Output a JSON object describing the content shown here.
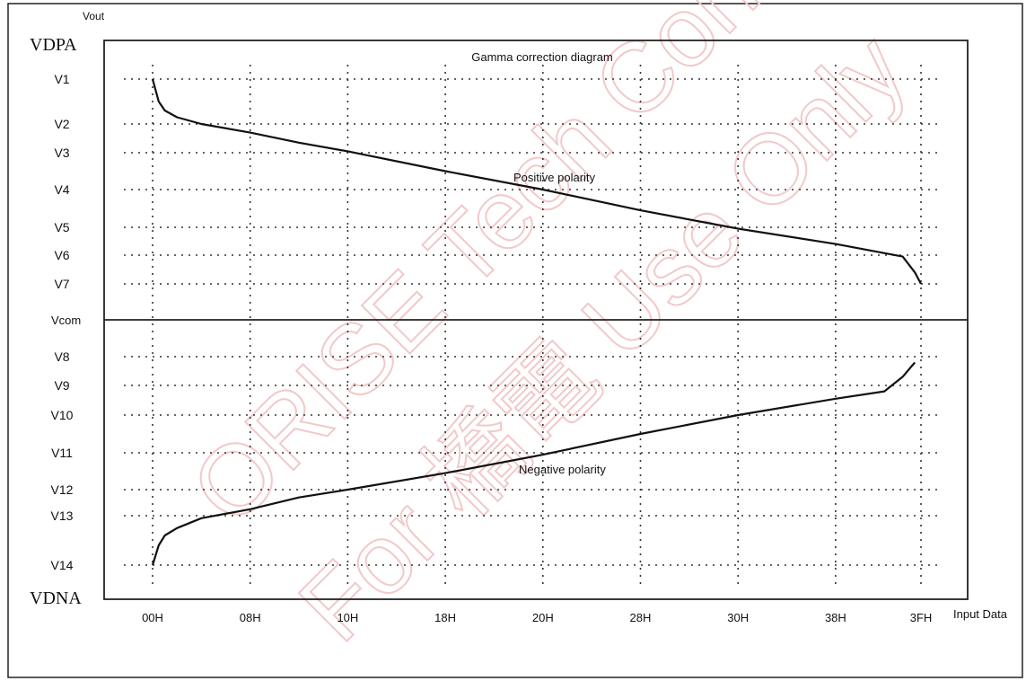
{
  "chart_data": {
    "type": "line",
    "title": "Gamma correction diagram",
    "y_axis_title": "Vout",
    "x_axis_title": "Input Data",
    "top_rail_label": "VDPA",
    "bottom_rail_label": "VDNA",
    "center_label": "Vcom",
    "x_ticks": [
      "00H",
      "08H",
      "10H",
      "18H",
      "20H",
      "28H",
      "30H",
      "38H",
      "3FH"
    ],
    "x_tick_values": [
      0,
      8,
      16,
      24,
      32,
      40,
      48,
      56,
      63
    ],
    "y_levels": [
      "V1",
      "V2",
      "V3",
      "V4",
      "V5",
      "V6",
      "V7",
      "V8",
      "V9",
      "V10",
      "V11",
      "V12",
      "V13",
      "V14"
    ],
    "grid": true,
    "series": [
      {
        "name": "Positive polarity",
        "x": [
          0,
          0.5,
          1,
          2,
          4,
          8,
          12,
          16,
          24,
          32,
          40,
          48,
          56,
          61.5,
          62.5,
          63
        ],
        "y": [
          "V1",
          1.5,
          1.7,
          1.85,
          2.0,
          2.3,
          2.65,
          2.95,
          3.5,
          4.0,
          4.55,
          5.05,
          5.6,
          6.05,
          6.6,
          7.0
        ]
      },
      {
        "name": "Negative polarity",
        "x": [
          0,
          0.5,
          1,
          2,
          4,
          8,
          12,
          16,
          24,
          32,
          40,
          48,
          56,
          60,
          61.5,
          62.5
        ],
        "y": [
          14.0,
          13.6,
          13.4,
          13.25,
          13.05,
          12.75,
          12.3,
          12.0,
          11.55,
          11.05,
          10.5,
          10.0,
          9.45,
          9.2,
          8.7,
          8.2
        ]
      }
    ]
  },
  "watermark": {
    "line1": "ORISE Tech Confidential",
    "line2": "For 橋電 Use Only"
  }
}
